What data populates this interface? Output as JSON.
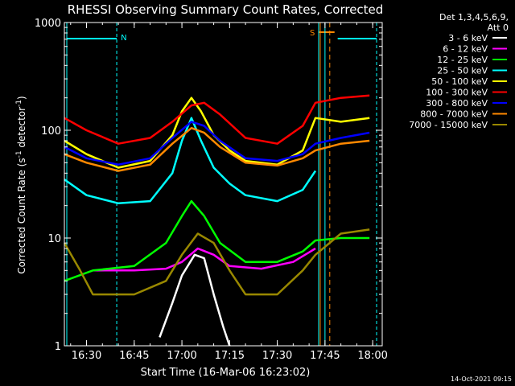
{
  "chart_data": {
    "type": "line",
    "title": "RHESSI Observing Summary Count Rates, Corrected",
    "xlabel": "Start Time (16-Mar-06 16:23:02)",
    "ylabel": "Corrected Count Rate (s",
    "ylabel_sup1": "-1",
    "ylabel_mid": " detector",
    "ylabel_sup2": "-1",
    "ylabel_end": ")",
    "y_scale": "log",
    "ylim": [
      1,
      1000
    ],
    "xlim": [
      "16:23:02",
      "18:03:00"
    ],
    "x_ticks": [
      "16:30",
      "16:45",
      "17:00",
      "17:15",
      "17:30",
      "17:45",
      "18:00"
    ],
    "y_ticks": [
      "1",
      "10",
      "100",
      "1000"
    ],
    "grid": false,
    "legend_position": "top-right",
    "legend_header": [
      "Det 1,3,4,5,6,9,",
      "Att 0"
    ],
    "footer_date": "14-Oct-2021 09:15",
    "flag_labels": [
      "N",
      "S"
    ],
    "series": [
      {
        "name": "3 - 6 keV",
        "color": "#ffffff",
        "values": [
          {
            "x": "16:53:00",
            "y": 1.2
          },
          {
            "x": "16:57:00",
            "y": 2.5
          },
          {
            "x": "17:00:00",
            "y": 4.5
          },
          {
            "x": "17:04:00",
            "y": 7.0
          },
          {
            "x": "17:07:00",
            "y": 6.5
          },
          {
            "x": "17:10:00",
            "y": 3.0
          },
          {
            "x": "17:13:00",
            "y": 1.5
          },
          {
            "x": "17:15:00",
            "y": 1.0
          }
        ]
      },
      {
        "name": "6 - 12 keV",
        "color": "#ff00ff",
        "values": [
          {
            "x": "16:32:00",
            "y": 5.0
          },
          {
            "x": "16:45:00",
            "y": 5.0
          },
          {
            "x": "16:55:00",
            "y": 5.2
          },
          {
            "x": "17:00:00",
            "y": 6.0
          },
          {
            "x": "17:05:00",
            "y": 8.0
          },
          {
            "x": "17:10:00",
            "y": 7.0
          },
          {
            "x": "17:15:00",
            "y": 5.5
          },
          {
            "x": "17:25:00",
            "y": 5.2
          },
          {
            "x": "17:35:00",
            "y": 6.0
          },
          {
            "x": "17:42:00",
            "y": 8.0
          }
        ]
      },
      {
        "name": "12 - 25 keV",
        "color": "#00ff00",
        "values": [
          {
            "x": "16:23:02",
            "y": 4.0
          },
          {
            "x": "16:32:00",
            "y": 5.0
          },
          {
            "x": "16:45:00",
            "y": 5.5
          },
          {
            "x": "16:55:00",
            "y": 9.0
          },
          {
            "x": "17:00:00",
            "y": 16.0
          },
          {
            "x": "17:03:00",
            "y": 22.0
          },
          {
            "x": "17:07:00",
            "y": 16.0
          },
          {
            "x": "17:12:00",
            "y": 9.0
          },
          {
            "x": "17:20:00",
            "y": 6.0
          },
          {
            "x": "17:30:00",
            "y": 6.0
          },
          {
            "x": "17:38:00",
            "y": 7.5
          },
          {
            "x": "17:42:00",
            "y": 9.5
          },
          {
            "x": "17:50:00",
            "y": 10.0
          },
          {
            "x": "17:59:00",
            "y": 10.0
          }
        ]
      },
      {
        "name": "25 - 50 keV",
        "color": "#00ffff",
        "values": [
          {
            "x": "16:23:02",
            "y": 35.0
          },
          {
            "x": "16:30:00",
            "y": 25.0
          },
          {
            "x": "16:40:00",
            "y": 21.0
          },
          {
            "x": "16:50:00",
            "y": 22.0
          },
          {
            "x": "16:57:00",
            "y": 40.0
          },
          {
            "x": "17:00:00",
            "y": 80.0
          },
          {
            "x": "17:03:00",
            "y": 130.0
          },
          {
            "x": "17:06:00",
            "y": 80.0
          },
          {
            "x": "17:10:00",
            "y": 45.0
          },
          {
            "x": "17:15:00",
            "y": 32.0
          },
          {
            "x": "17:20:00",
            "y": 25.0
          },
          {
            "x": "17:30:00",
            "y": 22.0
          },
          {
            "x": "17:38:00",
            "y": 28.0
          },
          {
            "x": "17:42:00",
            "y": 42.0
          }
        ]
      },
      {
        "name": "50 - 100 keV",
        "color": "#ffff00",
        "values": [
          {
            "x": "16:23:02",
            "y": 80.0
          },
          {
            "x": "16:30:00",
            "y": 60.0
          },
          {
            "x": "16:40:00",
            "y": 45.0
          },
          {
            "x": "16:50:00",
            "y": 52.0
          },
          {
            "x": "16:57:00",
            "y": 90.0
          },
          {
            "x": "17:00:00",
            "y": 150.0
          },
          {
            "x": "17:03:00",
            "y": 200.0
          },
          {
            "x": "17:06:00",
            "y": 150.0
          },
          {
            "x": "17:10:00",
            "y": 90.0
          },
          {
            "x": "17:15:00",
            "y": 65.0
          },
          {
            "x": "17:20:00",
            "y": 52.0
          },
          {
            "x": "17:30:00",
            "y": 48.0
          },
          {
            "x": "17:38:00",
            "y": 65.0
          },
          {
            "x": "17:42:00",
            "y": 130.0
          },
          {
            "x": "17:50:00",
            "y": 120.0
          },
          {
            "x": "17:59:00",
            "y": 130.0
          }
        ]
      },
      {
        "name": "100 - 300 keV",
        "color": "#ff0000",
        "values": [
          {
            "x": "16:23:02",
            "y": 130.0
          },
          {
            "x": "16:30:00",
            "y": 100.0
          },
          {
            "x": "16:40:00",
            "y": 75.0
          },
          {
            "x": "16:50:00",
            "y": 85.0
          },
          {
            "x": "16:57:00",
            "y": 120.0
          },
          {
            "x": "17:03:00",
            "y": 170.0
          },
          {
            "x": "17:07:00",
            "y": 180.0
          },
          {
            "x": "17:12:00",
            "y": 140.0
          },
          {
            "x": "17:20:00",
            "y": 85.0
          },
          {
            "x": "17:30:00",
            "y": 75.0
          },
          {
            "x": "17:38:00",
            "y": 110.0
          },
          {
            "x": "17:42:00",
            "y": 180.0
          },
          {
            "x": "17:50:00",
            "y": 200.0
          },
          {
            "x": "17:59:00",
            "y": 210.0
          }
        ]
      },
      {
        "name": "300 - 800 keV",
        "color": "#0000ff",
        "values": [
          {
            "x": "16:23:02",
            "y": 70.0
          },
          {
            "x": "16:30:00",
            "y": 55.0
          },
          {
            "x": "16:40:00",
            "y": 48.0
          },
          {
            "x": "16:50:00",
            "y": 55.0
          },
          {
            "x": "16:57:00",
            "y": 85.0
          },
          {
            "x": "17:03:00",
            "y": 120.0
          },
          {
            "x": "17:07:00",
            "y": 110.0
          },
          {
            "x": "17:12:00",
            "y": 80.0
          },
          {
            "x": "17:20:00",
            "y": 55.0
          },
          {
            "x": "17:30:00",
            "y": 52.0
          },
          {
            "x": "17:38:00",
            "y": 60.0
          },
          {
            "x": "17:42:00",
            "y": 75.0
          },
          {
            "x": "17:50:00",
            "y": 85.0
          },
          {
            "x": "17:59:00",
            "y": 95.0
          }
        ]
      },
      {
        "name": "800 - 7000 keV",
        "color": "#ff8800",
        "values": [
          {
            "x": "16:23:02",
            "y": 60.0
          },
          {
            "x": "16:30:00",
            "y": 50.0
          },
          {
            "x": "16:40:00",
            "y": 42.0
          },
          {
            "x": "16:50:00",
            "y": 48.0
          },
          {
            "x": "16:57:00",
            "y": 75.0
          },
          {
            "x": "17:03:00",
            "y": 105.0
          },
          {
            "x": "17:07:00",
            "y": 95.0
          },
          {
            "x": "17:12:00",
            "y": 70.0
          },
          {
            "x": "17:20:00",
            "y": 50.0
          },
          {
            "x": "17:30:00",
            "y": 47.0
          },
          {
            "x": "17:38:00",
            "y": 55.0
          },
          {
            "x": "17:42:00",
            "y": 65.0
          },
          {
            "x": "17:50:00",
            "y": 75.0
          },
          {
            "x": "17:59:00",
            "y": 80.0
          }
        ]
      },
      {
        "name": "7000 - 15000 keV",
        "color": "#998800",
        "values": [
          {
            "x": "16:23:02",
            "y": 9.0
          },
          {
            "x": "16:28:00",
            "y": 5.0
          },
          {
            "x": "16:32:00",
            "y": 3.0
          },
          {
            "x": "16:45:00",
            "y": 3.0
          },
          {
            "x": "16:55:00",
            "y": 4.0
          },
          {
            "x": "17:00:00",
            "y": 7.0
          },
          {
            "x": "17:05:00",
            "y": 11.0
          },
          {
            "x": "17:10:00",
            "y": 9.0
          },
          {
            "x": "17:15:00",
            "y": 5.0
          },
          {
            "x": "17:20:00",
            "y": 3.0
          },
          {
            "x": "17:30:00",
            "y": 3.0
          },
          {
            "x": "17:38:00",
            "y": 5.0
          },
          {
            "x": "17:42:00",
            "y": 7.0
          },
          {
            "x": "17:50:00",
            "y": 11.0
          },
          {
            "x": "17:59:00",
            "y": 12.0
          }
        ]
      }
    ]
  }
}
